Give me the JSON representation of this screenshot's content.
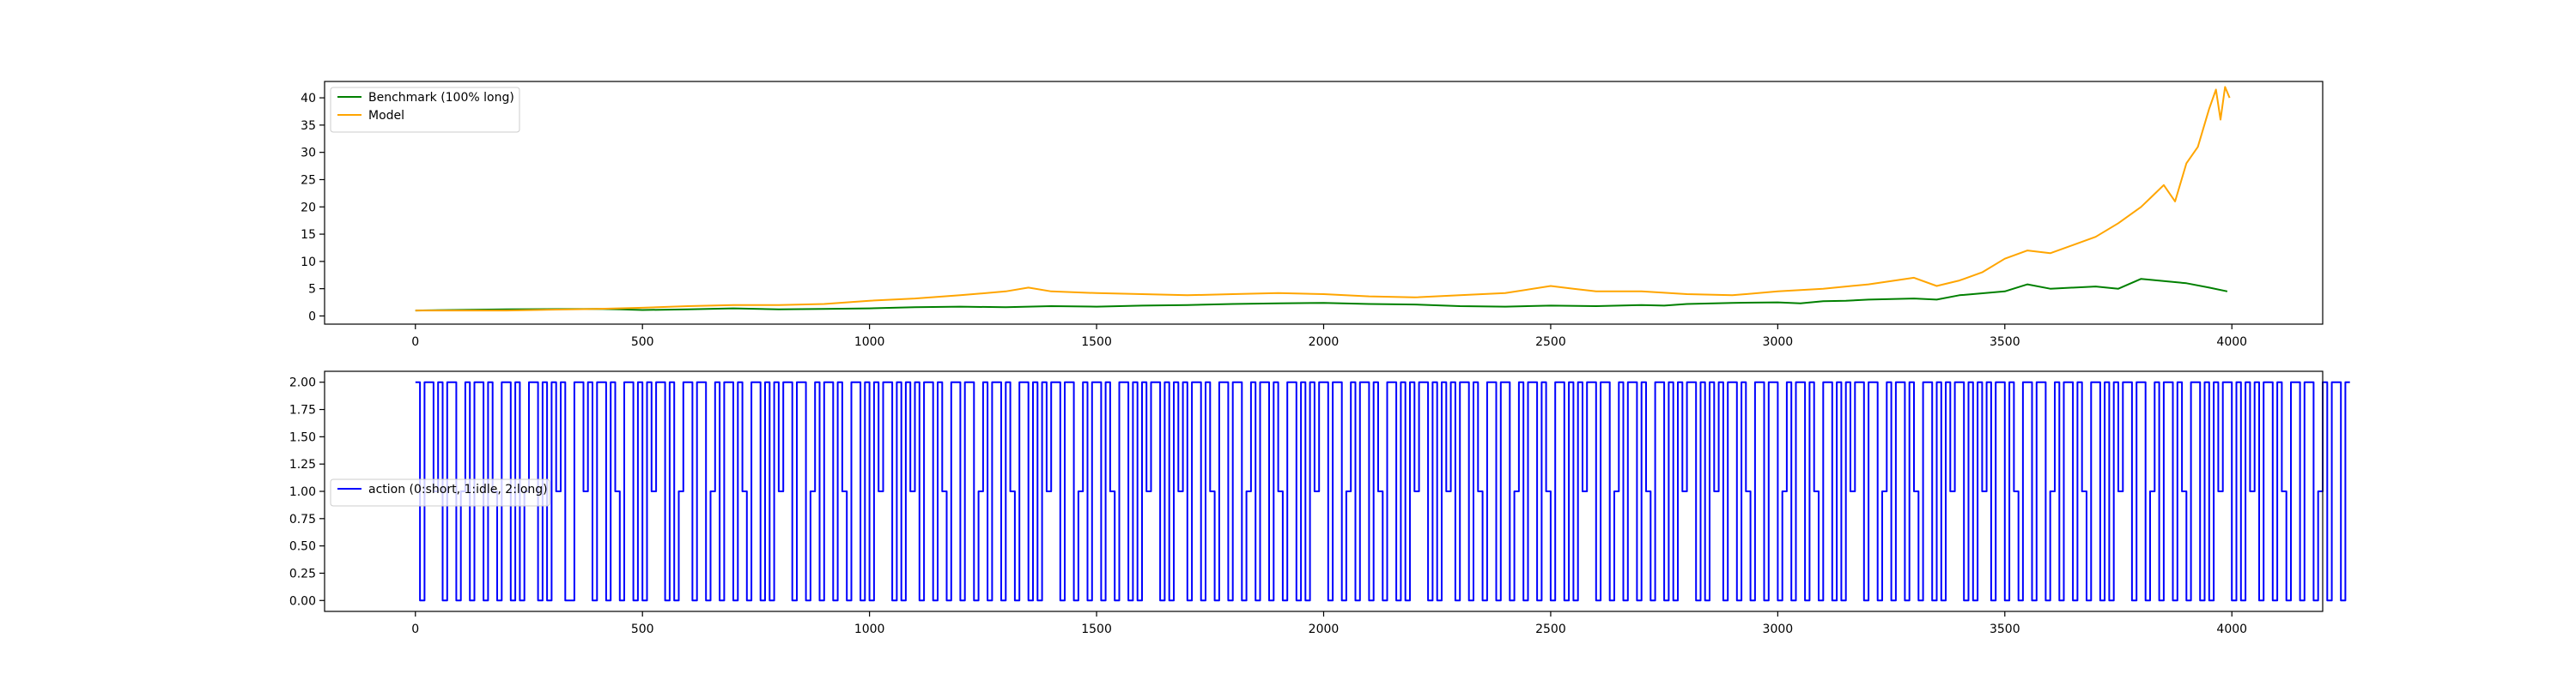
{
  "chart_data": [
    {
      "type": "line",
      "title": "",
      "xlabel": "",
      "ylabel": "",
      "xlim": [
        -200,
        4200
      ],
      "ylim": [
        -1.5,
        43
      ],
      "xticks": [
        0,
        500,
        1000,
        1500,
        2000,
        2500,
        3000,
        3500,
        4000
      ],
      "yticks": [
        0,
        5,
        10,
        15,
        20,
        25,
        30,
        35,
        40
      ],
      "grid": false,
      "legend": "upper left",
      "series": [
        {
          "name": "Benchmark (100% long)",
          "color": "#008000",
          "x": [
            0,
            200,
            400,
            450,
            500,
            600,
            700,
            800,
            900,
            1000,
            1100,
            1200,
            1300,
            1400,
            1500,
            1600,
            1700,
            1800,
            1900,
            2000,
            2100,
            2200,
            2300,
            2400,
            2500,
            2600,
            2700,
            2750,
            2800,
            2900,
            3000,
            3050,
            3100,
            3150,
            3200,
            3300,
            3350,
            3400,
            3500,
            3550,
            3600,
            3700,
            3750,
            3800,
            3850,
            3900,
            3950,
            3990
          ],
          "values": [
            1.0,
            1.2,
            1.3,
            1.2,
            1.1,
            1.2,
            1.4,
            1.2,
            1.3,
            1.4,
            1.6,
            1.7,
            1.6,
            1.8,
            1.7,
            1.9,
            2.0,
            2.2,
            2.3,
            2.4,
            2.2,
            2.1,
            1.8,
            1.7,
            1.9,
            1.8,
            2.0,
            1.9,
            2.2,
            2.4,
            2.5,
            2.3,
            2.7,
            2.8,
            3.0,
            3.2,
            3.0,
            3.8,
            4.5,
            5.8,
            5.0,
            5.4,
            5.0,
            6.8,
            6.4,
            6.0,
            5.2,
            4.5
          ]
        },
        {
          "name": "Model",
          "color": "#ffa500",
          "x": [
            0,
            200,
            400,
            500,
            600,
            700,
            800,
            900,
            1000,
            1100,
            1200,
            1300,
            1350,
            1400,
            1500,
            1600,
            1700,
            1800,
            1900,
            2000,
            2100,
            2200,
            2300,
            2400,
            2500,
            2550,
            2600,
            2700,
            2800,
            2900,
            3000,
            3100,
            3200,
            3300,
            3350,
            3400,
            3450,
            3500,
            3550,
            3600,
            3650,
            3700,
            3750,
            3800,
            3825,
            3850,
            3875,
            3900,
            3925,
            3950,
            3965,
            3975,
            3985,
            3995
          ],
          "values": [
            1.0,
            1.0,
            1.3,
            1.5,
            1.8,
            2.0,
            2.0,
            2.2,
            2.8,
            3.2,
            3.8,
            4.5,
            5.2,
            4.5,
            4.2,
            4.0,
            3.8,
            4.0,
            4.2,
            4.0,
            3.6,
            3.4,
            3.8,
            4.2,
            5.5,
            5.0,
            4.5,
            4.5,
            4.0,
            3.8,
            4.5,
            5.0,
            5.8,
            7.0,
            5.5,
            6.5,
            8.0,
            10.5,
            12.0,
            11.5,
            13.0,
            14.5,
            17.0,
            20.0,
            22.0,
            24.0,
            21.0,
            28.0,
            31.0,
            38.0,
            41.5,
            36.0,
            42.0,
            40.0
          ]
        }
      ]
    },
    {
      "type": "line",
      "title": "",
      "xlabel": "",
      "ylabel": "",
      "xlim": [
        -200,
        4200
      ],
      "ylim": [
        -0.1,
        2.1
      ],
      "xticks": [
        0,
        500,
        1000,
        1500,
        2000,
        2500,
        3000,
        3500,
        4000
      ],
      "yticks": [
        0.0,
        0.25,
        0.5,
        0.75,
        1.0,
        1.25,
        1.5,
        1.75,
        2.0
      ],
      "ytick_labels": [
        "0.00",
        "0.25",
        "0.50",
        "0.75",
        "1.00",
        "1.25",
        "1.50",
        "1.75",
        "2.00"
      ],
      "grid": false,
      "legend": "center left",
      "series": [
        {
          "name": "action (0:short, 1:idle, 2:long)",
          "color": "#0000ff",
          "x_start": 0,
          "x_step": 10,
          "values": [
            2,
            0,
            2,
            2,
            1,
            2,
            0,
            2,
            2,
            0,
            1,
            2,
            0,
            2,
            2,
            0,
            2,
            1,
            0,
            2,
            2,
            0,
            2,
            0,
            1,
            2,
            2,
            0,
            2,
            0,
            2,
            1,
            2,
            0,
            0,
            2,
            2,
            1,
            2,
            0,
            2,
            2,
            0,
            2,
            1,
            0,
            2,
            2,
            0,
            2,
            0,
            2,
            1,
            2,
            2,
            0,
            2,
            0,
            1,
            2,
            2,
            0,
            2,
            2,
            0,
            1,
            2,
            0,
            2,
            2,
            0,
            2,
            1,
            0,
            2,
            2,
            0,
            2,
            0,
            2,
            1,
            2,
            2,
            0,
            2,
            2,
            0,
            1,
            2,
            0,
            2,
            2,
            0,
            2,
            1,
            0,
            2,
            2,
            0,
            2,
            0,
            2,
            1,
            2,
            2,
            0,
            2,
            0,
            2,
            1,
            2,
            0,
            2,
            2,
            0,
            2,
            1,
            0,
            2,
            2,
            0,
            2,
            2,
            0,
            1,
            2,
            0,
            2,
            2,
            0,
            2,
            1,
            0,
            2,
            2,
            0,
            2,
            0,
            2,
            1,
            2,
            2,
            0,
            2,
            2,
            0,
            1,
            2,
            0,
            2,
            2,
            0,
            2,
            1,
            0,
            2,
            2,
            0,
            2,
            0,
            2,
            1,
            2,
            2,
            0,
            2,
            0,
            2,
            1,
            2,
            0,
            2,
            2,
            0,
            2,
            1,
            0,
            2,
            2,
            0,
            2,
            2,
            0,
            1,
            2,
            0,
            2,
            2,
            0,
            2,
            1,
            0,
            2,
            2,
            0,
            2,
            0,
            2,
            1,
            2,
            2,
            0,
            2,
            2,
            0,
            1,
            2,
            0,
            2,
            2,
            0,
            2,
            1,
            0,
            2,
            2,
            0,
            2,
            0,
            2,
            1,
            2,
            2,
            0,
            2,
            0,
            2,
            1,
            2,
            0,
            2,
            2,
            0,
            2,
            1,
            0,
            2,
            2,
            0,
            2,
            2,
            0,
            1,
            2,
            0,
            2,
            2,
            0,
            2,
            1,
            0,
            2,
            2,
            0,
            2,
            0,
            2,
            1,
            2,
            2,
            0,
            2,
            2,
            0,
            1,
            2,
            0,
            2,
            2,
            0,
            2,
            1,
            0,
            2,
            2,
            0,
            2,
            0,
            2,
            1,
            2,
            2,
            0,
            2,
            0,
            2,
            1,
            2,
            0,
            2,
            2,
            0,
            2,
            1,
            0,
            2,
            2,
            0,
            2,
            2,
            0,
            1,
            2,
            0,
            2,
            2,
            0,
            2,
            1,
            0,
            2,
            2,
            0,
            2,
            0,
            2,
            1,
            2,
            2,
            0,
            2,
            2,
            0,
            1,
            2,
            0,
            2,
            2,
            0,
            2,
            1,
            0,
            2,
            2,
            0,
            2,
            0,
            2,
            1,
            2,
            2,
            0,
            2,
            0,
            2,
            1,
            2,
            0,
            2,
            2,
            0,
            2,
            1,
            0,
            2,
            2,
            0,
            2,
            2,
            0,
            1,
            2,
            0,
            2,
            2,
            0,
            2,
            1,
            0,
            2,
            2,
            0,
            2,
            0,
            2,
            1,
            2,
            2,
            0,
            2,
            2,
            0,
            1,
            2,
            0,
            2,
            2,
            0,
            2,
            1,
            0,
            2,
            2,
            0,
            2,
            0,
            2,
            1,
            2,
            2,
            0,
            2,
            0,
            2,
            1,
            2,
            0,
            2,
            2,
            0,
            2,
            1,
            0,
            2,
            2,
            0,
            2,
            2,
            0,
            1,
            2,
            0,
            2,
            2,
            0,
            2
          ]
        }
      ]
    }
  ]
}
